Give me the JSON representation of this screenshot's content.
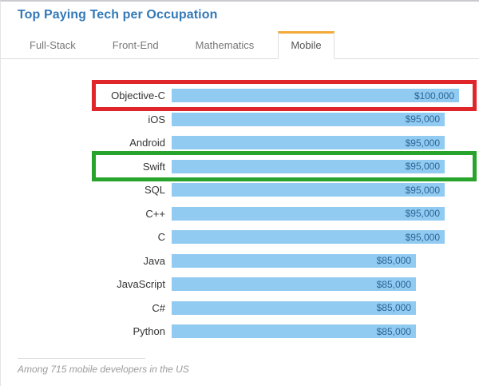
{
  "title": "Top Paying Tech per Occupation",
  "tabs": [
    {
      "label": "Full-Stack",
      "active": false
    },
    {
      "label": "Front-End",
      "active": false
    },
    {
      "label": "Mathematics",
      "active": false
    },
    {
      "label": "Mobile",
      "active": true
    }
  ],
  "footer": {
    "note": "Among 715 mobile developers in the US"
  },
  "colors": {
    "title_blue": "#3379b7",
    "bar_fill": "#92cbf1",
    "bar_value_text": "#2a6496",
    "active_tab_accent": "#f5a938",
    "highlight_red": "#e0262b",
    "highlight_green": "#28a42c"
  },
  "chart_data": {
    "type": "bar",
    "orientation": "horizontal",
    "title": "Top Paying Tech per Occupation",
    "xlabel": "",
    "ylabel": "",
    "xlim": [
      0,
      100000
    ],
    "grid": false,
    "legend": false,
    "categories": [
      "Objective-C",
      "iOS",
      "Android",
      "Swift",
      "SQL",
      "C++",
      "C",
      "Java",
      "JavaScript",
      "C#",
      "Python"
    ],
    "values": [
      100000,
      95000,
      95000,
      95000,
      95000,
      95000,
      95000,
      85000,
      85000,
      85000,
      85000
    ],
    "value_labels": [
      "$100,000",
      "$95,000",
      "$95,000",
      "$95,000",
      "$95,000",
      "$95,000",
      "$95,000",
      "$85,000",
      "$85,000",
      "$85,000",
      "$85,000"
    ],
    "annotations": [
      {
        "category": "Objective-C",
        "shape": "rectangle-outline",
        "color": "#e0262b"
      },
      {
        "category": "Swift",
        "shape": "rectangle-outline",
        "color": "#28a42c"
      }
    ]
  }
}
